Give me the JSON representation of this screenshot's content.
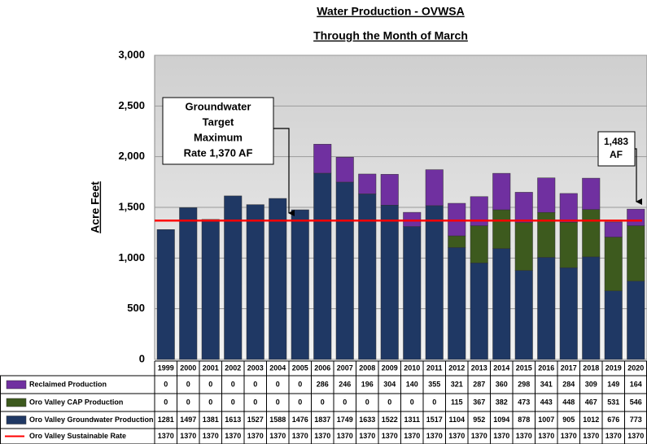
{
  "chart_data": {
    "type": "bar",
    "stacked": true,
    "title": "Water Production - OVWSA",
    "subtitle": "Through the Month of March",
    "y_label": "Acre Feet",
    "categories": [
      "1999",
      "2000",
      "2001",
      "2002",
      "2003",
      "2004",
      "2005",
      "2006",
      "2007",
      "2008",
      "2009",
      "2010",
      "2011",
      "2012",
      "2013",
      "2014",
      "2015",
      "2016",
      "2017",
      "2018",
      "2019",
      "2020"
    ],
    "series": [
      {
        "name": "Reclaimed Production",
        "color": "#7030a0",
        "values": [
          0,
          0,
          0,
          0,
          0,
          0,
          0,
          286,
          246,
          196,
          304,
          140,
          355,
          321,
          287,
          360,
          298,
          341,
          284,
          309,
          149,
          164
        ]
      },
      {
        "name": "Oro Valley CAP Production",
        "color": "#3d5a1e",
        "values": [
          0,
          0,
          0,
          0,
          0,
          0,
          0,
          0,
          0,
          0,
          0,
          0,
          0,
          115,
          367,
          382,
          473,
          443,
          448,
          467,
          531,
          546
        ]
      },
      {
        "name": "Oro Valley Groundwater Production",
        "color": "#1f3864",
        "values": [
          1281,
          1497,
          1381,
          1613,
          1527,
          1588,
          1476,
          1837,
          1749,
          1633,
          1522,
          1311,
          1517,
          1104,
          952,
          1094,
          878,
          1007,
          905,
          1012,
          676,
          773
        ]
      },
      {
        "name": "Oro Valley Sustainable Rate",
        "color": "#ff0000",
        "type": "line",
        "values": [
          1370,
          1370,
          1370,
          1370,
          1370,
          1370,
          1370,
          1370,
          1370,
          1370,
          1370,
          1370,
          1370,
          1370,
          1370,
          1370,
          1370,
          1370,
          1370,
          1370,
          1370,
          1370
        ]
      }
    ],
    "ylim": [
      0,
      3000
    ],
    "yticks": [
      0,
      500,
      {
        "value": 1000,
        "label": "1,000"
      },
      {
        "value": 1500,
        "label": "1,500"
      },
      {
        "value": 2000,
        "label": "2,000"
      },
      {
        "value": 2500,
        "label": "2,500"
      },
      {
        "value": 3000,
        "label": "3,000"
      }
    ],
    "grid": true,
    "annotations": [
      {
        "lines": [
          "Groundwater",
          "Target",
          "Maximum",
          "Rate 1,370 AF"
        ]
      },
      {
        "lines": [
          "1,483",
          "AF"
        ]
      }
    ]
  }
}
